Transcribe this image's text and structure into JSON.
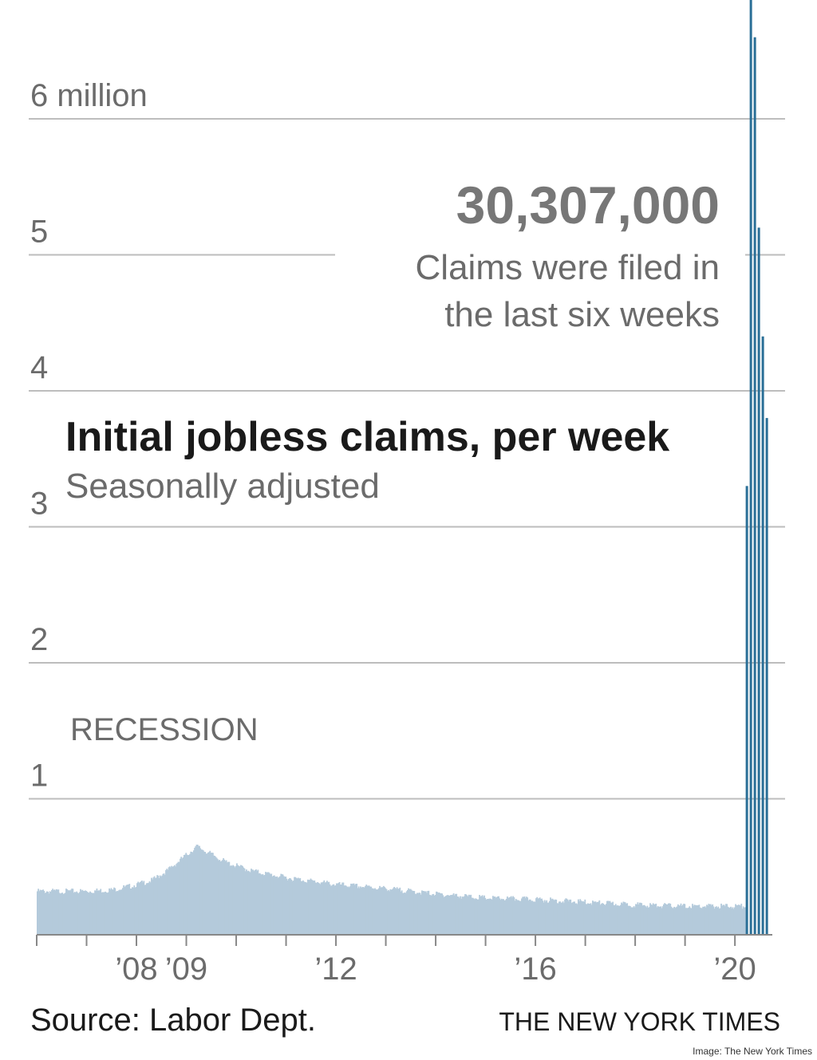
{
  "chart_data": {
    "type": "bar",
    "title": "Initial jobless claims, per week",
    "subtitle": "Seasonally adjusted",
    "y_unit": "million",
    "ylim": [
      0,
      6
    ],
    "y_ticks": [
      {
        "value": 1,
        "label": "1"
      },
      {
        "value": 2,
        "label": "2"
      },
      {
        "value": 3,
        "label": "3"
      },
      {
        "value": 4,
        "label": "4"
      },
      {
        "value": 5,
        "label": "5"
      },
      {
        "value": 6,
        "label": "6 million"
      }
    ],
    "x_ticks": [
      {
        "value": 2008,
        "label": "’08"
      },
      {
        "value": 2009,
        "label": "’09"
      },
      {
        "value": 2012,
        "label": "’12"
      },
      {
        "value": 2016,
        "label": "’16"
      },
      {
        "value": 2020,
        "label": "’20"
      }
    ],
    "xlim": [
      2006,
      2020.75
    ],
    "grid": true,
    "background_series": {
      "style": "filled area of weekly bars",
      "points": [
        {
          "x": 2006.0,
          "y": 0.32
        },
        {
          "x": 2007.0,
          "y": 0.32
        },
        {
          "x": 2007.5,
          "y": 0.33
        },
        {
          "x": 2007.9,
          "y": 0.36
        },
        {
          "x": 2008.3,
          "y": 0.4
        },
        {
          "x": 2008.6,
          "y": 0.47
        },
        {
          "x": 2008.9,
          "y": 0.56
        },
        {
          "x": 2009.2,
          "y": 0.65
        },
        {
          "x": 2009.45,
          "y": 0.6
        },
        {
          "x": 2009.8,
          "y": 0.53
        },
        {
          "x": 2010.3,
          "y": 0.47
        },
        {
          "x": 2011.0,
          "y": 0.42
        },
        {
          "x": 2012.0,
          "y": 0.37
        },
        {
          "x": 2013.0,
          "y": 0.34
        },
        {
          "x": 2014.0,
          "y": 0.3
        },
        {
          "x": 2015.0,
          "y": 0.27
        },
        {
          "x": 2016.0,
          "y": 0.26
        },
        {
          "x": 2017.0,
          "y": 0.24
        },
        {
          "x": 2018.0,
          "y": 0.22
        },
        {
          "x": 2019.0,
          "y": 0.21
        },
        {
          "x": 2020.2,
          "y": 0.21
        }
      ]
    },
    "highlight_series": {
      "values": [
        {
          "x": 2020.24,
          "y": 3.3
        },
        {
          "x": 2020.32,
          "y": 6.9
        },
        {
          "x": 2020.4,
          "y": 6.6
        },
        {
          "x": 2020.48,
          "y": 5.2
        },
        {
          "x": 2020.56,
          "y": 4.4
        },
        {
          "x": 2020.64,
          "y": 3.8
        }
      ]
    },
    "annotations": {
      "total": "30,307,000",
      "callout_line1": "Claims were filed in",
      "callout_line2": "the last six weeks",
      "recession": "RECESSION"
    }
  },
  "footer": {
    "source": "Source: Labor Dept.",
    "credit": "THE NEW YORK TIMES",
    "image_credit": "Image: The New York Times"
  },
  "colors": {
    "area": "#b4cadb",
    "highlight": "#2a6f97",
    "grid": "#bdbdbd",
    "axis": "#888888"
  }
}
